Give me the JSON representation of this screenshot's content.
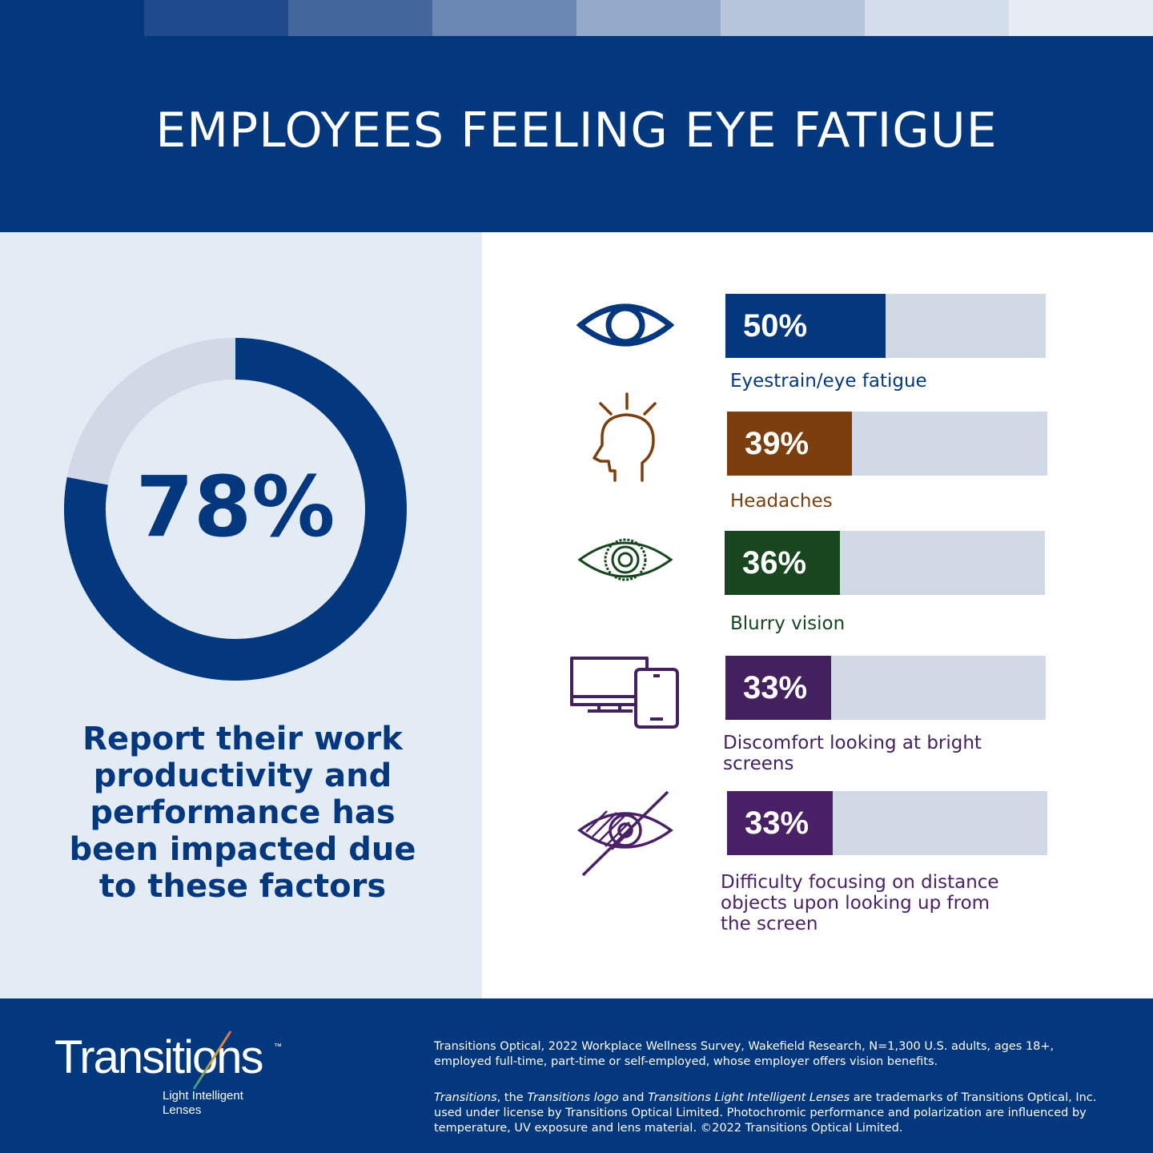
{
  "header": {
    "title": "EMPLOYEES FEELING EYE FATIGUE",
    "stripe_colors": [
      "#03377e",
      "#1f4a8c",
      "#43679d",
      "#6b88b4",
      "#93aac9",
      "#b6c5dc",
      "#d4ddeb",
      "#e8edf5"
    ]
  },
  "summary": {
    "value_label": "78%",
    "value": 78,
    "caption": "Report their work productivity and performance has been impacted due to these factors",
    "colors": {
      "fill": "#03377e",
      "rest": "#d0d9e5"
    }
  },
  "chart_data": [
    {
      "type": "pie",
      "variant": "donut",
      "values": [
        78,
        22
      ],
      "labels": [
        "78%",
        ""
      ]
    },
    {
      "type": "bar",
      "orientation": "horizontal",
      "categories": [
        "Eyestrain/eye fatigue",
        "Headaches",
        "Blurry vision",
        "Discomfort looking at bright screens",
        "Difficulty focusing on distance objects upon looking up from the screen"
      ],
      "values": [
        50,
        39,
        36,
        33,
        33
      ],
      "value_labels": [
        "50%",
        "39%",
        "36%",
        "33%",
        "33%"
      ],
      "xlim": [
        0,
        100
      ],
      "colors": [
        "#03377e",
        "#7b3f0d",
        "#17461f",
        "#43215f",
        "#4a2167"
      ],
      "track_color": "#d0d9e5"
    }
  ],
  "factors": [
    {
      "value_label": "50%",
      "label": "Eyestrain/eye fatigue",
      "icon": "eye-icon",
      "color": "#03377e"
    },
    {
      "value_label": "39%",
      "label": "Headaches",
      "icon": "headache-head-icon",
      "color": "#7b3f0d"
    },
    {
      "value_label": "36%",
      "label": "Blurry vision",
      "icon": "blurry-eye-icon",
      "color": "#17461f"
    },
    {
      "value_label": "33%",
      "label": "Discomfort looking at bright screens",
      "icon": "monitor-phone-icon",
      "color": "#43215f"
    },
    {
      "value_label": "33%",
      "label": "Difficulty focusing on distance objects upon looking up from the screen",
      "icon": "eye-slash-icon",
      "color": "#4a2167"
    }
  ],
  "footer": {
    "logo_text": "Transitions",
    "logo_tm": "™",
    "logo_tagline": "Light Intelligent Lenses",
    "source": "Transitions Optical, 2022 Workplace Wellness Survey, Wakefield Research, N=1,300 U.S. adults, ages 18+, employed full-time, part-time or self-employed,  whose employer offers vision benefits.",
    "legal": {
      "t1": "Transitions",
      "t2": ", the ",
      "t3": "Transitions logo",
      "t4": " and ",
      "t5": "Transitions Light Intelligent Lenses",
      "t6": " are trademarks of Transitions Optical, Inc. used under license by Transitions Optical Limited. Photochromic performance and polarization are influenced by temperature, UV exposure and lens material. ©2022 Transitions Optical Limited."
    }
  }
}
